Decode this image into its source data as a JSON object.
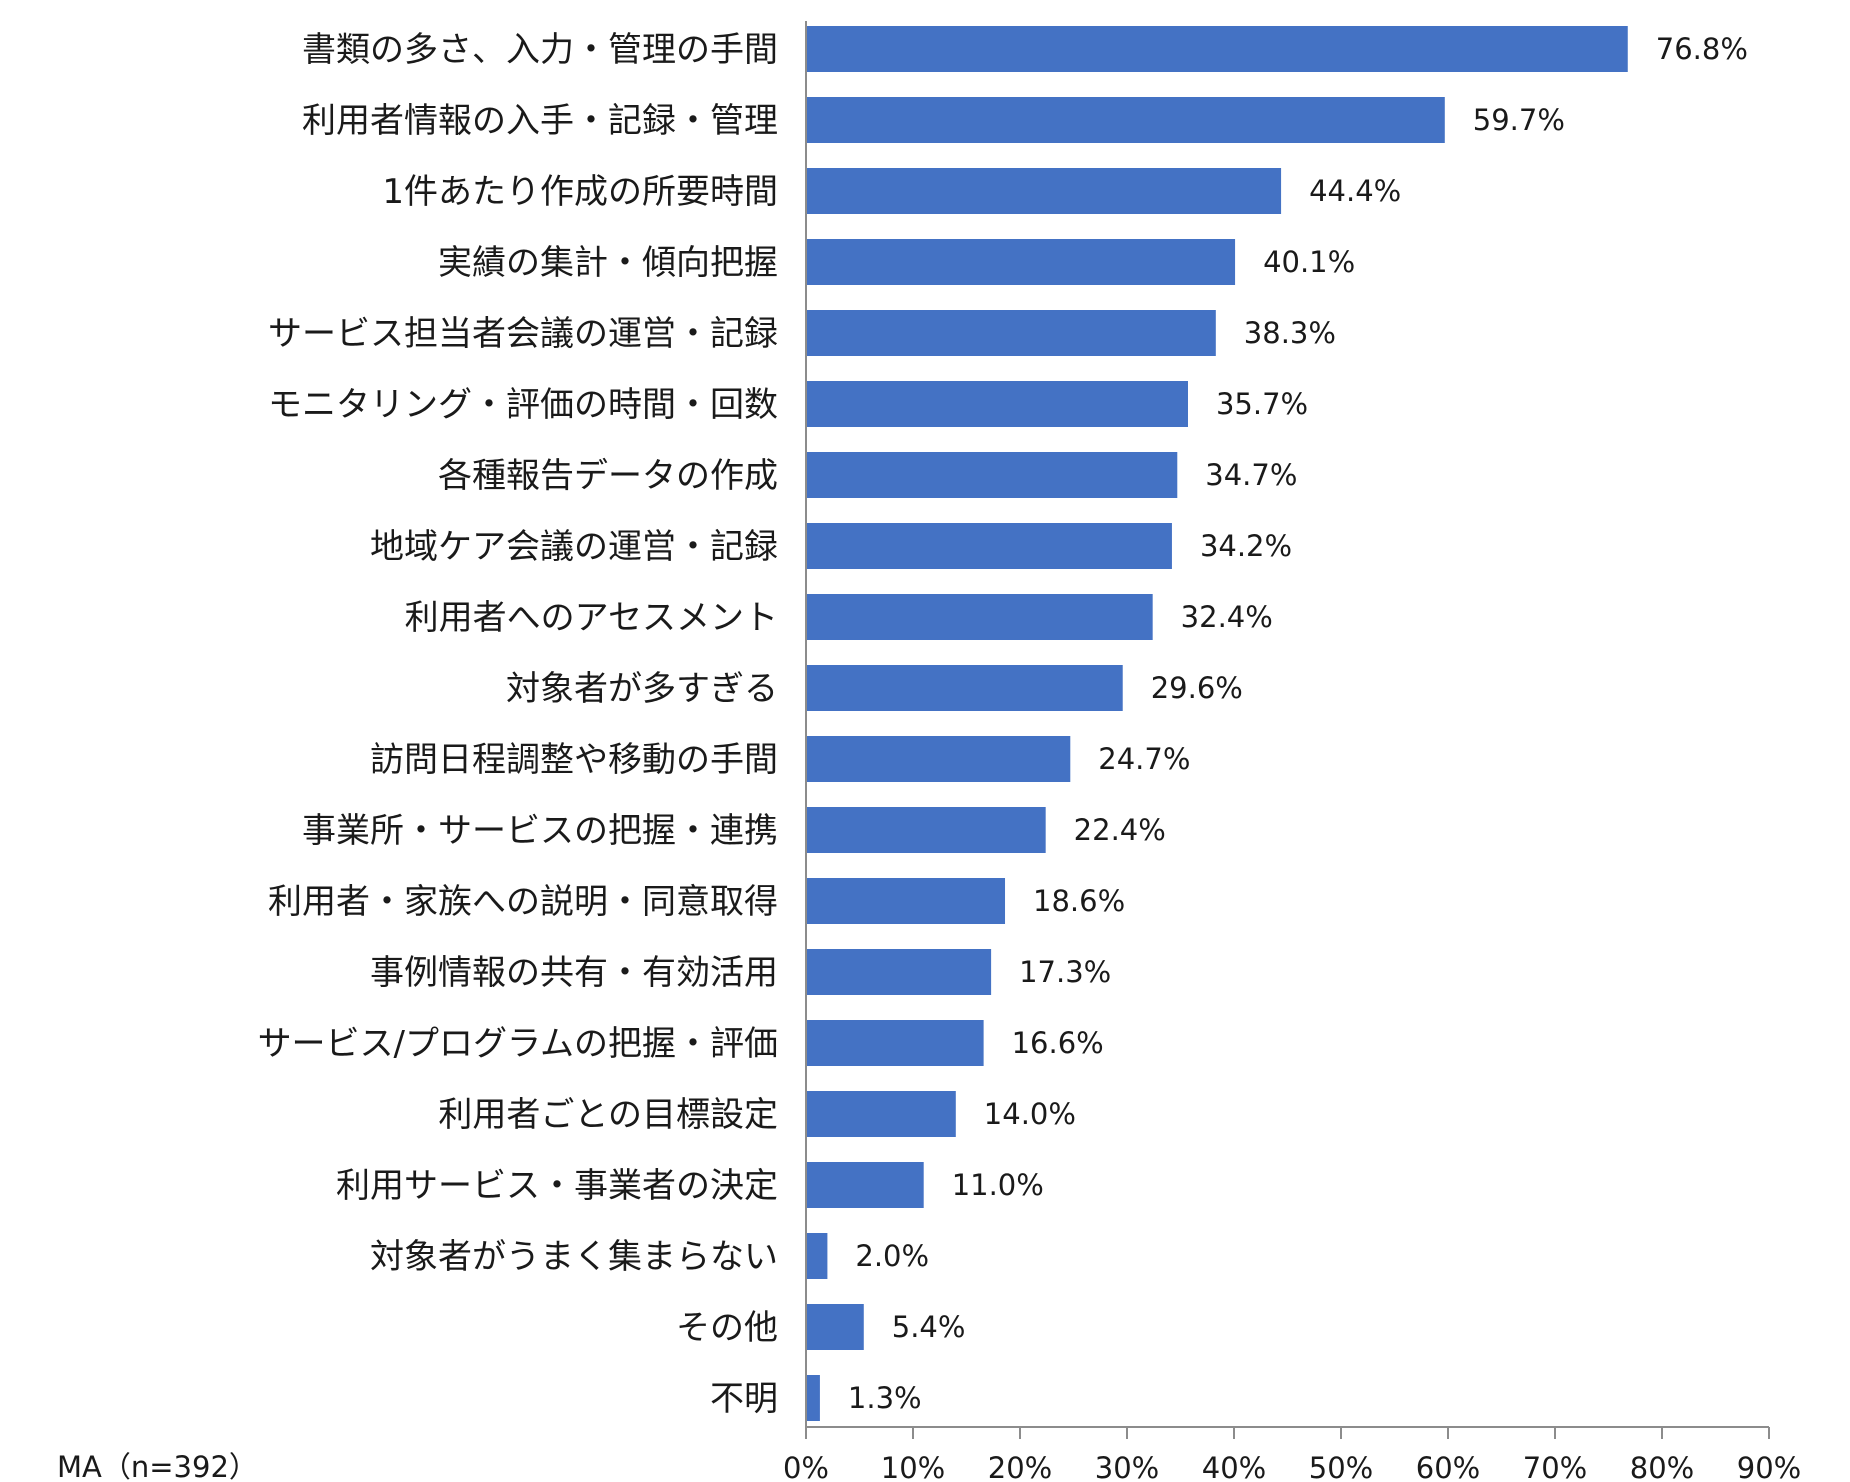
{
  "chart_data": {
    "type": "bar",
    "orientation": "horizontal",
    "categories": [
      "書類の多さ、入力・管理の手間",
      "利用者情報の入手・記録・管理",
      "1件あたり作成の所要時間",
      "実績の集計・傾向把握",
      "サービス担当者会議の運営・記録",
      "モニタリング・評価の時間・回数",
      "各種報告データの作成",
      "地域ケア会議の運営・記録",
      "利用者へのアセスメント",
      "対象者が多すぎる",
      "訪問日程調整や移動の手間",
      "事業所・サービスの把握・連携",
      "利用者・家族への説明・同意取得",
      "事例情報の共有・有効活用",
      "サービス/プログラムの把握・評価",
      "利用者ごとの目標設定",
      "利用サービス・事業者の決定",
      "対象者がうまく集まらない",
      "その他",
      "不明"
    ],
    "values": [
      76.8,
      59.7,
      44.4,
      40.1,
      38.3,
      35.7,
      34.7,
      34.2,
      32.4,
      29.6,
      24.7,
      22.4,
      18.6,
      17.3,
      16.6,
      14.0,
      11.0,
      2.0,
      5.4,
      1.3
    ],
    "value_labels": [
      "76.8%",
      "59.7%",
      "44.4%",
      "40.1%",
      "38.3%",
      "35.7%",
      "34.7%",
      "34.2%",
      "32.4%",
      "29.6%",
      "24.7%",
      "22.4%",
      "18.6%",
      "17.3%",
      "16.6%",
      "14.0%",
      "11.0%",
      "2.0%",
      "5.4%",
      "1.3%"
    ],
    "xlim": [
      0,
      90
    ],
    "x_ticks": [
      "0%",
      "10%",
      "20%",
      "30%",
      "40%",
      "50%",
      "60%",
      "70%",
      "80%",
      "90%"
    ],
    "bar_color": "#4472C4",
    "grid": false,
    "note": "MA（n=392）",
    "title": "",
    "xlabel": "",
    "ylabel": ""
  }
}
